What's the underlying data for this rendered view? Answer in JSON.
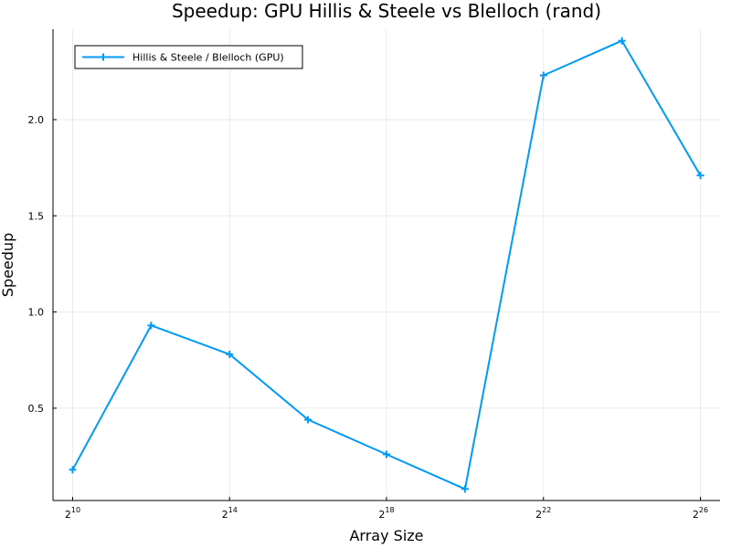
{
  "chart_data": {
    "type": "line",
    "title": "Speedup: GPU Hillis & Steele vs Blelloch (rand)",
    "xlabel": "Array Size",
    "ylabel": "Speedup",
    "x_scale": "log2",
    "xlim_exponent": [
      9.5,
      26.5
    ],
    "ylim": [
      0.02,
      2.47
    ],
    "x_ticks": [
      {
        "base": "2",
        "exp": "10",
        "value": 10
      },
      {
        "base": "2",
        "exp": "14",
        "value": 14
      },
      {
        "base": "2",
        "exp": "18",
        "value": 18
      },
      {
        "base": "2",
        "exp": "22",
        "value": 22
      },
      {
        "base": "2",
        "exp": "26",
        "value": 26
      }
    ],
    "y_ticks": [
      {
        "label": "0.5",
        "value": 0.5
      },
      {
        "label": "1.0",
        "value": 1.0
      },
      {
        "label": "1.5",
        "value": 1.5
      },
      {
        "label": "2.0",
        "value": 2.0
      }
    ],
    "grid": true,
    "legend_position": "top-left",
    "series": [
      {
        "name": "Hillis & Steele / Blelloch (GPU)",
        "color": "#009AF9",
        "marker": "cross",
        "x_exponent": [
          10,
          12,
          14,
          16,
          18,
          20,
          22,
          24,
          26
        ],
        "values": [
          0.18,
          0.93,
          0.78,
          0.44,
          0.26,
          0.08,
          2.23,
          2.41,
          1.71
        ]
      }
    ]
  }
}
